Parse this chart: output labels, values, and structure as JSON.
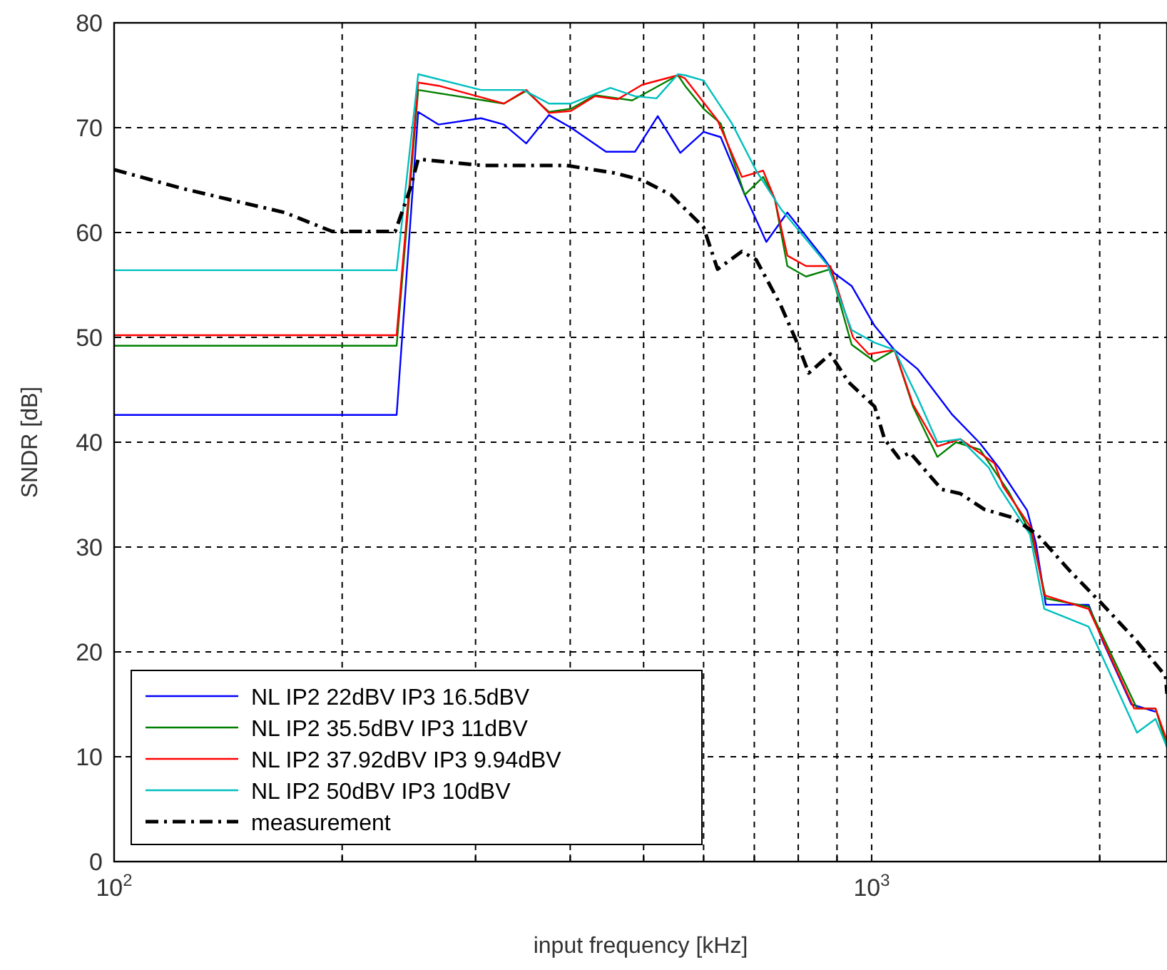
{
  "chart_data": {
    "type": "line",
    "xlabel": "input frequency [kHz]",
    "ylabel": "SNDR [dB]",
    "log": "x",
    "grid": true,
    "legend": "bottom left",
    "xlim": [
      100,
      2454
    ],
    "ylim": [
      0,
      80
    ],
    "xticks": [
      {
        "value": 100,
        "label": "10$^{2}$"
      },
      {
        "value": 200,
        "label": null
      },
      {
        "value": 300,
        "label": null
      },
      {
        "value": 400,
        "label": null
      },
      {
        "value": 500,
        "label": null
      },
      {
        "value": 600,
        "label": null
      },
      {
        "value": 700,
        "label": null
      },
      {
        "value": 800,
        "label": null
      },
      {
        "value": 900,
        "label": null
      },
      {
        "value": 1000,
        "label": "10$^{3}$"
      },
      {
        "value": 2000,
        "label": null
      }
    ],
    "yticks": [
      0,
      10,
      20,
      30,
      40,
      50,
      60,
      70,
      80
    ],
    "series": [
      {
        "name": "NL IP2 22dBV IP3 16.5dBV",
        "color": "#0000ff",
        "x": [
          100,
          236,
          252,
          268,
          305,
          327,
          350,
          375,
          401,
          446,
          487,
          522,
          559,
          600,
          632,
          680,
          726,
          774,
          863,
          893,
          941,
          1009,
          1072,
          1149,
          1275,
          1390,
          1471,
          1604,
          1647,
          1698,
          1934,
          2019,
          2202,
          2370
        ],
        "values": [
          42.6,
          42.6,
          71.5,
          70.3,
          70.9,
          70.3,
          68.5,
          71.2,
          70,
          67.7,
          67.7,
          71.1,
          67.6,
          69.6,
          69.1,
          63.6,
          59.1,
          61.9,
          57.6,
          56.1,
          54.9,
          51.1,
          48.8,
          47,
          42.7,
          39.9,
          37.6,
          33.5,
          30.4,
          24.5,
          24.5,
          21,
          15,
          14.3
        ]
      },
      {
        "name": "NL IP2 35.5dBV IP3 11dBV",
        "color": "#008000",
        "x": [
          100,
          236,
          252,
          327,
          350,
          375,
          401,
          431,
          483,
          555,
          567,
          600,
          632,
          680,
          719,
          745,
          774,
          819,
          882,
          941,
          1009,
          1072,
          1134,
          1221,
          1292,
          1390,
          1516,
          1625,
          1698,
          1934,
          2240,
          2370,
          2454
        ],
        "values": [
          49.2,
          49.2,
          73.6,
          72.3,
          73.5,
          71.5,
          71.8,
          73.1,
          72.6,
          75,
          74,
          71.8,
          70.4,
          63.6,
          65.3,
          63.2,
          56.8,
          55.8,
          56.5,
          49.3,
          47.7,
          48.8,
          43.4,
          38.6,
          40,
          39.3,
          35.3,
          31.2,
          25.1,
          24.3,
          14.6,
          14.6,
          10.9
        ]
      },
      {
        "name": "NL IP2 37.92dBV IP3 9.94dBV",
        "color": "#ff0000",
        "x": [
          100,
          236,
          252,
          268,
          327,
          350,
          375,
          401,
          431,
          462,
          498,
          555,
          567,
          626,
          674,
          719,
          745,
          774,
          819,
          882,
          945,
          991,
          1072,
          1134,
          1221,
          1309,
          1452,
          1491,
          1625,
          1690,
          1934,
          2221,
          2370,
          2454
        ],
        "values": [
          50.2,
          50.2,
          74.3,
          74,
          72.3,
          73.6,
          71.4,
          71.6,
          73,
          72.7,
          74.1,
          75,
          74.7,
          70.7,
          65.3,
          65.9,
          63.2,
          57.8,
          56.8,
          56.8,
          50,
          48.4,
          48.8,
          43.6,
          39.6,
          40.3,
          38,
          35.8,
          31.8,
          25.4,
          24.1,
          14.6,
          14.6,
          11.5
        ]
      },
      {
        "name": "NL IP2 50dBV IP3 10dBV",
        "color": "#00bfbf",
        "x": [
          100,
          236,
          252,
          305,
          347,
          375,
          401,
          452,
          487,
          520,
          555,
          567,
          600,
          654,
          704,
          758,
          874,
          941,
          1009,
          1072,
          1149,
          1221,
          1309,
          1427,
          1471,
          1618,
          1690,
          1934,
          2240,
          2370,
          2454
        ],
        "values": [
          56.4,
          56.4,
          75.1,
          73.6,
          73.6,
          72.3,
          72.3,
          73.8,
          73,
          72.8,
          75.1,
          75,
          74.5,
          70.4,
          65.9,
          62.3,
          56.9,
          50.7,
          49.5,
          48.8,
          44.3,
          40,
          40.3,
          37.6,
          35.8,
          31.2,
          24.1,
          22.4,
          12.3,
          13.6,
          10.9
        ]
      },
      {
        "name": "measurement",
        "color": "#000000",
        "line_style": "dashdot",
        "x": [
          100,
          123,
          168,
          194,
          235,
          246,
          252,
          305,
          395,
          456,
          498,
          543,
          600,
          626,
          674,
          704,
          758,
          795,
          826,
          882,
          933,
          1009,
          1040,
          1086,
          1124,
          1237,
          1309,
          1408,
          1536,
          1654,
          1828,
          2019,
          2240,
          2443,
          2454
        ],
        "values": [
          66,
          64.2,
          61.9,
          60.1,
          60.1,
          64.2,
          67,
          66.4,
          66.4,
          65.7,
          65,
          63.6,
          60.5,
          56.5,
          58.2,
          57.4,
          53.1,
          49.7,
          46.6,
          48.4,
          45.7,
          43.4,
          40.3,
          38.5,
          39,
          35.5,
          35.1,
          33.6,
          32.8,
          31.2,
          27.7,
          24.5,
          21,
          17.7,
          16
        ]
      }
    ]
  }
}
